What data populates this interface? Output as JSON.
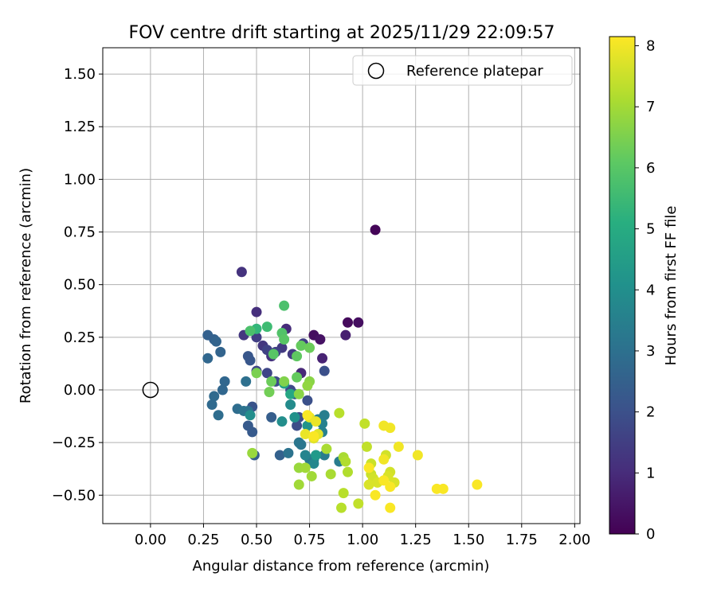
{
  "chart_data": {
    "type": "scatter",
    "title": "FOV centre drift starting at 2025/11/29 22:09:57",
    "xlabel": "Angular distance from reference (arcmin)",
    "ylabel": "Rotation from reference (arcmin)",
    "xlim": [
      -0.225,
      2.025
    ],
    "ylim": [
      -0.635,
      1.625
    ],
    "xticks": [
      0,
      0.25,
      0.5,
      0.75,
      1.0,
      1.25,
      1.5,
      1.75,
      2.0
    ],
    "xtick_labels": [
      "0.00",
      "0.25",
      "0.50",
      "0.75",
      "1.00",
      "1.25",
      "1.50",
      "1.75",
      "2.00"
    ],
    "yticks": [
      -0.5,
      -0.25,
      0,
      0.25,
      0.5,
      0.75,
      1.0,
      1.25,
      1.5
    ],
    "ytick_labels": [
      "−0.50",
      "−0.25",
      "0.00",
      "0.25",
      "0.50",
      "0.75",
      "1.00",
      "1.25",
      "1.50"
    ],
    "grid": true,
    "legend": {
      "position": "top-right",
      "label": "Reference platepar"
    },
    "reference_point": {
      "x": 0,
      "y": 0
    },
    "colorbar": {
      "label": "Hours from first FF file",
      "range": [
        0,
        8.15
      ],
      "ticks": [
        0,
        1,
        2,
        3,
        4,
        5,
        6,
        7,
        8
      ],
      "tick_labels": [
        "0",
        "1",
        "2",
        "3",
        "4",
        "5",
        "6",
        "7",
        "8"
      ],
      "colormap": "viridis"
    },
    "points": [
      [
        1.06,
        0.76,
        0.1
      ],
      [
        0.93,
        0.32,
        0.2
      ],
      [
        0.98,
        0.32,
        0.3
      ],
      [
        0.77,
        0.26,
        0.3
      ],
      [
        0.8,
        0.24,
        0.4
      ],
      [
        0.92,
        0.26,
        0.7
      ],
      [
        0.81,
        0.15,
        0.8
      ],
      [
        0.71,
        0.08,
        0.9
      ],
      [
        0.64,
        0.29,
        1.0
      ],
      [
        0.5,
        0.37,
        1.1
      ],
      [
        0.43,
        0.56,
        1.2
      ],
      [
        0.57,
        0.16,
        1.2
      ],
      [
        0.44,
        0.26,
        1.3
      ],
      [
        0.53,
        0.21,
        1.3
      ],
      [
        0.62,
        0.2,
        1.4
      ],
      [
        0.67,
        0.17,
        1.4
      ],
      [
        0.72,
        0.22,
        1.5
      ],
      [
        0.5,
        0.25,
        1.5
      ],
      [
        0.55,
        0.19,
        1.6
      ],
      [
        0.59,
        0.18,
        1.6
      ],
      [
        0.5,
        0.09,
        1.7
      ],
      [
        0.55,
        0.08,
        1.7
      ],
      [
        0.59,
        0.04,
        1.8
      ],
      [
        0.66,
        0.0,
        1.8
      ],
      [
        0.7,
        -0.13,
        1.9
      ],
      [
        0.69,
        -0.17,
        1.9
      ],
      [
        0.74,
        -0.05,
        2.0
      ],
      [
        0.82,
        0.09,
        2.0
      ],
      [
        0.68,
        -0.02,
        2.1
      ],
      [
        0.48,
        -0.08,
        2.1
      ],
      [
        0.47,
        0.14,
        2.2
      ],
      [
        0.46,
        0.16,
        2.2
      ],
      [
        0.46,
        -0.17,
        2.3
      ],
      [
        0.48,
        -0.2,
        2.3
      ],
      [
        0.49,
        -0.31,
        2.4
      ],
      [
        0.57,
        -0.13,
        2.4
      ],
      [
        0.61,
        -0.31,
        2.5
      ],
      [
        0.27,
        0.26,
        2.5
      ],
      [
        0.3,
        0.24,
        2.5
      ],
      [
        0.31,
        0.23,
        2.6
      ],
      [
        0.33,
        0.18,
        2.6
      ],
      [
        0.27,
        0.15,
        2.7
      ],
      [
        0.35,
        0.04,
        2.7
      ],
      [
        0.34,
        0.0,
        2.7
      ],
      [
        0.3,
        -0.03,
        2.8
      ],
      [
        0.29,
        -0.07,
        2.8
      ],
      [
        0.32,
        -0.12,
        2.9
      ],
      [
        0.41,
        -0.09,
        2.9
      ],
      [
        0.45,
        0.04,
        3.0
      ],
      [
        0.46,
        -0.1,
        3.0
      ],
      [
        0.44,
        -0.1,
        3.1
      ],
      [
        0.65,
        -0.3,
        3.1
      ],
      [
        0.71,
        -0.26,
        3.2
      ],
      [
        0.7,
        -0.25,
        3.2
      ],
      [
        0.75,
        -0.33,
        3.3
      ],
      [
        0.77,
        -0.33,
        3.3
      ],
      [
        0.82,
        -0.31,
        3.4
      ],
      [
        0.89,
        -0.34,
        3.4
      ],
      [
        0.79,
        -0.14,
        3.5
      ],
      [
        0.82,
        -0.12,
        3.5
      ],
      [
        0.81,
        -0.16,
        3.6
      ],
      [
        0.81,
        -0.2,
        3.6
      ],
      [
        0.73,
        -0.31,
        3.7
      ],
      [
        0.77,
        -0.35,
        3.8
      ],
      [
        0.66,
        -0.07,
        3.9
      ],
      [
        0.62,
        -0.15,
        4.0
      ],
      [
        0.47,
        -0.12,
        4.0
      ],
      [
        0.68,
        -0.13,
        4.1
      ],
      [
        0.74,
        -0.17,
        4.2
      ],
      [
        0.78,
        -0.31,
        4.4
      ],
      [
        0.63,
        0.03,
        4.6
      ],
      [
        0.66,
        -0.02,
        4.8
      ],
      [
        0.5,
        0.29,
        5.4
      ],
      [
        0.55,
        0.3,
        5.6
      ],
      [
        0.63,
        0.4,
        5.8
      ],
      [
        0.47,
        0.28,
        5.8
      ],
      [
        0.62,
        0.27,
        5.9
      ],
      [
        0.63,
        0.24,
        6.0
      ],
      [
        0.58,
        0.17,
        6.0
      ],
      [
        0.69,
        0.16,
        6.1
      ],
      [
        0.69,
        0.06,
        6.2
      ],
      [
        0.71,
        0.21,
        6.2
      ],
      [
        0.75,
        0.2,
        6.3
      ],
      [
        0.57,
        0.04,
        6.3
      ],
      [
        0.56,
        -0.01,
        6.4
      ],
      [
        0.5,
        0.08,
        6.5
      ],
      [
        0.63,
        0.04,
        6.6
      ],
      [
        0.7,
        -0.02,
        6.7
      ],
      [
        0.75,
        0.04,
        6.7
      ],
      [
        0.74,
        0.02,
        6.8
      ],
      [
        0.48,
        -0.3,
        6.9
      ],
      [
        0.7,
        -0.37,
        6.9
      ],
      [
        0.73,
        -0.37,
        7.0
      ],
      [
        0.7,
        -0.45,
        7.0
      ],
      [
        0.76,
        -0.41,
        7.0
      ],
      [
        0.83,
        -0.28,
        7.1
      ],
      [
        0.85,
        -0.4,
        7.1
      ],
      [
        0.91,
        -0.32,
        7.1
      ],
      [
        0.92,
        -0.34,
        7.2
      ],
      [
        0.93,
        -0.39,
        7.2
      ],
      [
        0.89,
        -0.11,
        7.3
      ],
      [
        0.91,
        -0.49,
        7.3
      ],
      [
        0.9,
        -0.56,
        7.3
      ],
      [
        0.98,
        -0.54,
        7.4
      ],
      [
        1.01,
        -0.16,
        7.4
      ],
      [
        1.02,
        -0.27,
        7.4
      ],
      [
        1.04,
        -0.35,
        7.5
      ],
      [
        1.04,
        -0.4,
        7.5
      ],
      [
        1.05,
        -0.42,
        7.6
      ],
      [
        1.11,
        -0.31,
        7.6
      ],
      [
        1.13,
        -0.39,
        7.6
      ],
      [
        1.15,
        -0.44,
        7.7
      ],
      [
        1.12,
        -0.41,
        7.7
      ],
      [
        1.07,
        -0.44,
        7.7
      ],
      [
        1.03,
        -0.45,
        7.7
      ],
      [
        0.79,
        -0.21,
        7.8
      ],
      [
        0.77,
        -0.23,
        7.8
      ],
      [
        0.75,
        -0.13,
        7.8
      ],
      [
        0.73,
        -0.21,
        7.9
      ],
      [
        0.78,
        -0.15,
        7.9
      ],
      [
        1.1,
        -0.17,
        8.0
      ],
      [
        1.13,
        -0.18,
        8.0
      ],
      [
        1.17,
        -0.27,
        8.0
      ],
      [
        1.26,
        -0.31,
        8.0
      ],
      [
        1.1,
        -0.33,
        8.0
      ],
      [
        1.03,
        -0.37,
        8.1
      ],
      [
        1.06,
        -0.5,
        8.1
      ],
      [
        1.1,
        -0.43,
        8.1
      ],
      [
        1.13,
        -0.46,
        8.1
      ],
      [
        1.13,
        -0.56,
        8.1
      ],
      [
        1.35,
        -0.47,
        8.1
      ],
      [
        1.38,
        -0.47,
        8.1
      ],
      [
        1.54,
        -0.45,
        8.1
      ],
      [
        0.74,
        -0.12,
        8.1
      ],
      [
        0.77,
        -0.22,
        8.1
      ]
    ]
  }
}
